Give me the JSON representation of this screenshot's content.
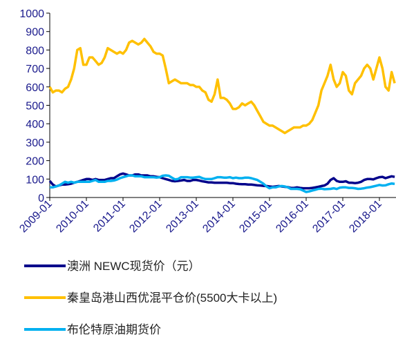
{
  "chart_data": {
    "type": "line",
    "x": [
      "2009-01",
      "2009-02",
      "2009-03",
      "2009-04",
      "2009-05",
      "2009-06",
      "2009-07",
      "2009-08",
      "2009-09",
      "2009-10",
      "2009-11",
      "2009-12",
      "2010-01",
      "2010-02",
      "2010-03",
      "2010-04",
      "2010-05",
      "2010-06",
      "2010-07",
      "2010-08",
      "2010-09",
      "2010-10",
      "2010-11",
      "2010-12",
      "2011-01",
      "2011-02",
      "2011-03",
      "2011-04",
      "2011-05",
      "2011-06",
      "2011-07",
      "2011-08",
      "2011-09",
      "2011-10",
      "2011-11",
      "2011-12",
      "2012-01",
      "2012-02",
      "2012-03",
      "2012-04",
      "2012-05",
      "2012-06",
      "2012-07",
      "2012-08",
      "2012-09",
      "2012-10",
      "2012-11",
      "2012-12",
      "2013-01",
      "2013-02",
      "2013-03",
      "2013-04",
      "2013-05",
      "2013-06",
      "2013-07",
      "2013-08",
      "2013-09",
      "2013-10",
      "2013-11",
      "2013-12",
      "2014-01",
      "2014-02",
      "2014-03",
      "2014-04",
      "2014-05",
      "2014-06",
      "2014-07",
      "2014-08",
      "2014-09",
      "2014-10",
      "2014-11",
      "2014-12",
      "2015-01",
      "2015-02",
      "2015-03",
      "2015-04",
      "2015-05",
      "2015-06",
      "2015-07",
      "2015-08",
      "2015-09",
      "2015-10",
      "2015-11",
      "2015-12",
      "2016-01",
      "2016-02",
      "2016-03",
      "2016-04",
      "2016-05",
      "2016-06",
      "2016-07",
      "2016-08",
      "2016-09",
      "2016-10",
      "2016-11",
      "2016-12",
      "2017-01",
      "2017-02",
      "2017-03",
      "2017-04",
      "2017-05",
      "2017-06",
      "2017-07",
      "2017-08",
      "2017-09",
      "2017-10",
      "2017-11",
      "2017-12",
      "2018-01",
      "2018-02",
      "2018-03",
      "2018-04",
      "2018-05",
      "2018-06"
    ],
    "xticks": [
      "2009-01",
      "2010-01",
      "2011-01",
      "2012-01",
      "2013-01",
      "2014-01",
      "2015-01",
      "2016-01",
      "2017-01",
      "2018-01"
    ],
    "ylim": [
      0,
      1000
    ],
    "yticks": [
      0,
      100,
      200,
      300,
      400,
      500,
      600,
      700,
      800,
      900,
      1000
    ],
    "series": [
      {
        "name": "澳洲 NEWC现货价（元）",
        "color": "#00008b",
        "values": [
          90,
          70,
          60,
          65,
          70,
          70,
          72,
          75,
          80,
          85,
          90,
          95,
          100,
          100,
          95,
          100,
          95,
          95,
          95,
          100,
          105,
          105,
          115,
          125,
          130,
          125,
          120,
          120,
          125,
          125,
          120,
          120,
          120,
          115,
          115,
          112,
          110,
          105,
          100,
          95,
          90,
          88,
          90,
          92,
          95,
          90,
          90,
          95,
          95,
          92,
          88,
          85,
          82,
          82,
          80,
          80,
          80,
          80,
          80,
          78,
          78,
          75,
          73,
          72,
          72,
          70,
          70,
          68,
          66,
          65,
          63,
          62,
          60,
          58,
          60,
          62,
          60,
          58,
          56,
          52,
          52,
          55,
          52,
          50,
          50,
          50,
          52,
          55,
          58,
          62,
          65,
          75,
          95,
          105,
          90,
          85,
          85,
          88,
          80,
          80,
          78,
          80,
          85,
          95,
          100,
          100,
          98,
          105,
          110,
          112,
          105,
          110,
          115,
          112
        ]
      },
      {
        "name": "秦皇岛港山西优混平仓价(5500大卡以上)",
        "color": "#ffc000",
        "values": [
          600,
          570,
          580,
          580,
          570,
          590,
          600,
          640,
          700,
          800,
          810,
          720,
          720,
          760,
          760,
          740,
          720,
          730,
          760,
          810,
          800,
          790,
          780,
          790,
          780,
          800,
          840,
          850,
          840,
          830,
          840,
          860,
          840,
          820,
          790,
          780,
          780,
          770,
          700,
          620,
          630,
          640,
          630,
          620,
          620,
          620,
          610,
          610,
          600,
          600,
          580,
          570,
          530,
          520,
          560,
          640,
          540,
          540,
          530,
          510,
          480,
          480,
          490,
          510,
          500,
          510,
          520,
          500,
          470,
          440,
          410,
          400,
          390,
          390,
          380,
          370,
          360,
          350,
          360,
          370,
          380,
          380,
          380,
          390,
          390,
          400,
          420,
          460,
          500,
          580,
          620,
          660,
          720,
          640,
          600,
          620,
          680,
          660,
          580,
          560,
          620,
          640,
          660,
          700,
          720,
          700,
          640,
          700,
          760,
          700,
          600,
          580,
          680,
          620
        ]
      },
      {
        "name": "布伦特原油期货价",
        "color": "#00b0f0",
        "values": [
          55,
          55,
          60,
          65,
          75,
          85,
          80,
          85,
          80,
          85,
          85,
          85,
          85,
          85,
          90,
          95,
          85,
          85,
          85,
          90,
          90,
          92,
          97,
          105,
          110,
          115,
          120,
          120,
          115,
          115,
          115,
          110,
          110,
          110,
          110,
          108,
          110,
          118,
          120,
          118,
          108,
          98,
          100,
          110,
          110,
          110,
          108,
          108,
          110,
          112,
          105,
          100,
          100,
          100,
          105,
          110,
          110,
          108,
          108,
          110,
          105,
          108,
          105,
          105,
          108,
          108,
          105,
          100,
          95,
          85,
          75,
          60,
          50,
          55,
          55,
          60,
          62,
          60,
          55,
          47,
          47,
          47,
          45,
          38,
          30,
          33,
          38,
          42,
          47,
          48,
          45,
          46,
          47,
          50,
          46,
          53,
          55,
          55,
          52,
          52,
          50,
          47,
          48,
          50,
          54,
          56,
          60,
          64,
          68,
          65,
          66,
          72,
          76,
          74
        ]
      }
    ]
  }
}
